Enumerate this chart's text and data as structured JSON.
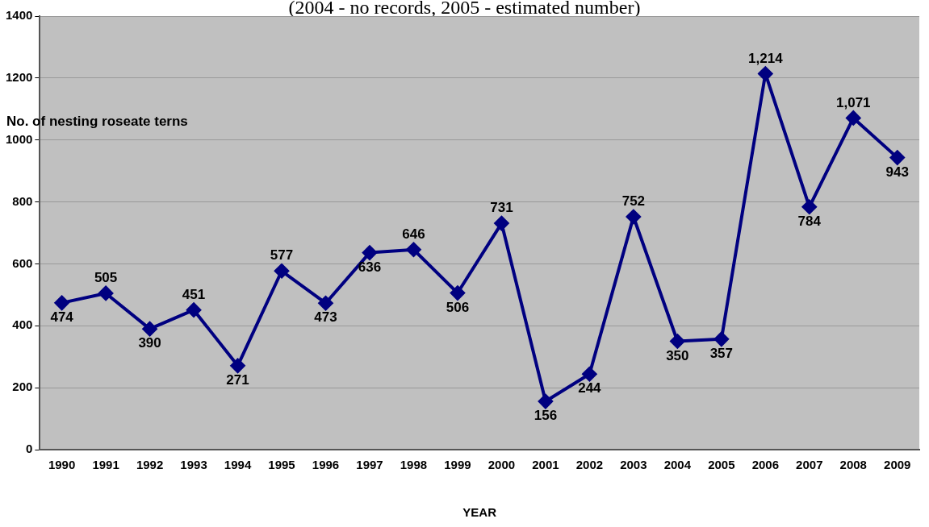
{
  "chart_data": {
    "type": "line",
    "subtitle": "(2004 - no records, 2005 - estimated number)",
    "xlabel": "YEAR",
    "ylabel": "No. of nesting roseate terns",
    "categories": [
      "1990",
      "1991",
      "1992",
      "1993",
      "1994",
      "1995",
      "1996",
      "1997",
      "1998",
      "1999",
      "2000",
      "2001",
      "2002",
      "2003",
      "2004",
      "2005",
      "2006",
      "2007",
      "2008",
      "2009"
    ],
    "series": [
      {
        "color": "#000080",
        "values": [
          474,
          505,
          390,
          451,
          271,
          577,
          473,
          636,
          646,
          506,
          731,
          156,
          244,
          752,
          350,
          357,
          1214,
          784,
          1071,
          943
        ],
        "value_labels": [
          "474",
          "505",
          "390",
          "451",
          "271",
          "577",
          "473",
          "636",
          "646",
          "506",
          "731",
          "156",
          "244",
          "752",
          "350",
          "357",
          "1,214",
          "784",
          "1,071",
          "943"
        ]
      }
    ],
    "ylim": [
      0,
      1400
    ],
    "yticks": [
      0,
      200,
      400,
      600,
      800,
      1000,
      1200,
      1400
    ],
    "grid": "y",
    "legend": false,
    "marker": "diamond",
    "line_style": "solid"
  }
}
